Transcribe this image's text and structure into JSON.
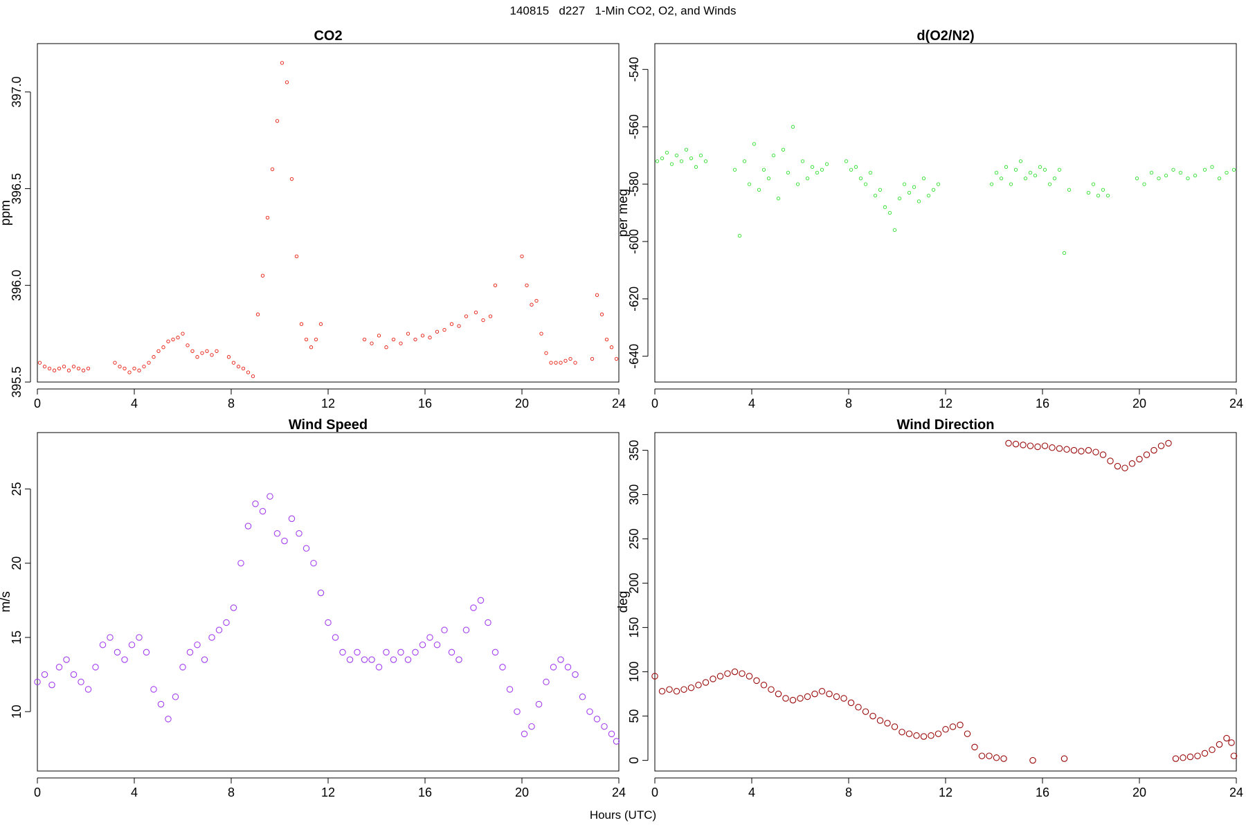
{
  "figure": {
    "suptitle": "140815   d227   1-Min CO2, O2, and Winds",
    "xlabel": "Hours (UTC)"
  },
  "chart_data": [
    {
      "id": "co2",
      "type": "scatter",
      "title": "CO2",
      "xlabel": "",
      "ylabel": "ppm",
      "xlim": [
        0,
        24
      ],
      "ylim": [
        395.5,
        397.25
      ],
      "xticks": [
        0,
        4,
        8,
        12,
        16,
        20,
        24
      ],
      "yticks": [
        395.5,
        396.0,
        396.5,
        397.0
      ],
      "ytick_labels": [
        "395.5",
        "396.0",
        "396.5",
        "397.0"
      ],
      "grid": false,
      "color": "#e8180c",
      "marker_size": "small",
      "series": [
        {
          "x": [
            0.1,
            0.3,
            0.5,
            0.7,
            0.9,
            1.1,
            1.3,
            1.5,
            1.7,
            1.9,
            2.1,
            3.2,
            3.4,
            3.6,
            3.8,
            4.0,
            4.2,
            4.4,
            4.6,
            4.8,
            5.0,
            5.2,
            5.4,
            5.6,
            5.8,
            6.0,
            6.2,
            6.4,
            6.6,
            6.8,
            7.0,
            7.2,
            7.4,
            7.9,
            8.1,
            8.3,
            8.5,
            8.7,
            8.9,
            9.1,
            9.3,
            9.5,
            9.7,
            9.9,
            10.1,
            10.3,
            10.5,
            10.7,
            10.9,
            11.1,
            11.3,
            11.5,
            11.7,
            13.5,
            13.8,
            14.1,
            14.4,
            14.7,
            15.0,
            15.3,
            15.6,
            15.9,
            16.2,
            16.5,
            16.8,
            17.1,
            17.4,
            17.7,
            18.1,
            18.4,
            18.7,
            18.9,
            20.0,
            20.2,
            20.4,
            20.6,
            20.8,
            21.0,
            21.2,
            21.4,
            21.6,
            21.8,
            22.0,
            22.2,
            22.9,
            23.1,
            23.3,
            23.5,
            23.7,
            23.9
          ],
          "y": [
            395.6,
            395.58,
            395.57,
            395.56,
            395.57,
            395.58,
            395.56,
            395.58,
            395.57,
            395.56,
            395.57,
            395.6,
            395.58,
            395.57,
            395.55,
            395.57,
            395.56,
            395.58,
            395.6,
            395.63,
            395.66,
            395.68,
            395.71,
            395.72,
            395.73,
            395.75,
            395.69,
            395.66,
            395.63,
            395.65,
            395.66,
            395.64,
            395.66,
            395.63,
            395.6,
            395.58,
            395.57,
            395.55,
            395.53,
            395.85,
            396.05,
            396.35,
            396.6,
            396.85,
            397.15,
            397.05,
            396.55,
            396.15,
            395.8,
            395.72,
            395.68,
            395.72,
            395.8,
            395.72,
            395.7,
            395.74,
            395.68,
            395.72,
            395.7,
            395.75,
            395.72,
            395.74,
            395.73,
            395.76,
            395.77,
            395.8,
            395.79,
            395.84,
            395.86,
            395.82,
            395.84,
            396.0,
            396.15,
            396.0,
            395.9,
            395.92,
            395.75,
            395.65,
            395.6,
            395.6,
            395.6,
            395.61,
            395.62,
            395.6,
            395.62,
            395.95,
            395.85,
            395.72,
            395.68,
            395.62
          ]
        }
      ]
    },
    {
      "id": "o2",
      "type": "scatter",
      "title": "d(O2/N2)",
      "xlabel": "",
      "ylabel": "per meg",
      "xlim": [
        0,
        24
      ],
      "ylim": [
        -649,
        -531
      ],
      "xticks": [
        0,
        4,
        8,
        12,
        16,
        20,
        24
      ],
      "yticks": [
        -640,
        -620,
        -600,
        -580,
        -560,
        -540
      ],
      "ytick_labels": [
        "-640",
        "-620",
        "-600",
        "-580",
        "-560",
        "-540"
      ],
      "grid": false,
      "color": "#2ee02e",
      "marker_size": "small",
      "series": [
        {
          "x": [
            0.1,
            0.3,
            0.5,
            0.7,
            0.9,
            1.1,
            1.3,
            1.5,
            1.7,
            1.9,
            2.1,
            3.3,
            3.5,
            3.7,
            3.9,
            4.1,
            4.3,
            4.5,
            4.7,
            4.9,
            5.1,
            5.3,
            5.5,
            5.7,
            5.9,
            6.1,
            6.3,
            6.5,
            6.7,
            6.9,
            7.1,
            7.9,
            8.1,
            8.3,
            8.5,
            8.7,
            8.9,
            9.1,
            9.3,
            9.5,
            9.7,
            9.9,
            10.1,
            10.3,
            10.5,
            10.7,
            10.9,
            11.1,
            11.3,
            11.5,
            11.7,
            13.9,
            14.1,
            14.3,
            14.5,
            14.7,
            14.9,
            15.1,
            15.3,
            15.5,
            15.7,
            15.9,
            16.1,
            16.3,
            16.5,
            16.7,
            16.9,
            17.1,
            17.9,
            18.1,
            18.3,
            18.5,
            18.7,
            19.9,
            20.2,
            20.5,
            20.8,
            21.1,
            21.4,
            21.7,
            22.0,
            22.3,
            22.7,
            23.0,
            23.3,
            23.6,
            23.9
          ],
          "y": [
            -572,
            -571,
            -569,
            -573,
            -570,
            -572,
            -568,
            -571,
            -574,
            -570,
            -572,
            -575,
            -598,
            -572,
            -580,
            -566,
            -582,
            -575,
            -578,
            -570,
            -585,
            -568,
            -576,
            -560,
            -580,
            -572,
            -578,
            -574,
            -576,
            -575,
            -573,
            -572,
            -575,
            -574,
            -578,
            -580,
            -576,
            -584,
            -582,
            -588,
            -590,
            -596,
            -585,
            -580,
            -583,
            -581,
            -586,
            -578,
            -584,
            -582,
            -580,
            -580,
            -576,
            -578,
            -574,
            -580,
            -575,
            -572,
            -578,
            -576,
            -577,
            -574,
            -575,
            -580,
            -578,
            -575,
            -604,
            -582,
            -583,
            -580,
            -584,
            -582,
            -584,
            -578,
            -580,
            -576,
            -578,
            -577,
            -575,
            -576,
            -578,
            -577,
            -575,
            -574,
            -578,
            -576,
            -575
          ]
        }
      ]
    },
    {
      "id": "wind_speed",
      "type": "scatter",
      "title": "Wind Speed",
      "xlabel": "",
      "ylabel": "m/s",
      "xlim": [
        0,
        24
      ],
      "ylim": [
        6.0,
        28.8
      ],
      "xticks": [
        0,
        4,
        8,
        12,
        16,
        20,
        24
      ],
      "yticks": [
        10,
        15,
        20,
        25
      ],
      "ytick_labels": [
        "10",
        "15",
        "20",
        "25"
      ],
      "grid": false,
      "color": "#a43ff0",
      "marker_size": "large",
      "series": [
        {
          "x": [
            0.0,
            0.3,
            0.6,
            0.9,
            1.2,
            1.5,
            1.8,
            2.1,
            2.4,
            2.7,
            3.0,
            3.3,
            3.6,
            3.9,
            4.2,
            4.5,
            4.8,
            5.1,
            5.4,
            5.7,
            6.0,
            6.3,
            6.6,
            6.9,
            7.2,
            7.5,
            7.8,
            8.1,
            8.4,
            8.7,
            9.0,
            9.3,
            9.6,
            9.9,
            10.2,
            10.5,
            10.8,
            11.1,
            11.4,
            11.7,
            12.0,
            12.3,
            12.6,
            12.9,
            13.2,
            13.5,
            13.8,
            14.1,
            14.4,
            14.7,
            15.0,
            15.3,
            15.6,
            15.9,
            16.2,
            16.5,
            16.8,
            17.1,
            17.4,
            17.7,
            18.0,
            18.3,
            18.6,
            18.9,
            19.2,
            19.5,
            19.8,
            20.1,
            20.4,
            20.7,
            21.0,
            21.3,
            21.6,
            21.9,
            22.2,
            22.5,
            22.8,
            23.1,
            23.4,
            23.7,
            23.9
          ],
          "y": [
            12.0,
            12.5,
            11.8,
            13.0,
            13.5,
            12.5,
            12.0,
            11.5,
            13.0,
            14.5,
            15.0,
            14.0,
            13.5,
            14.5,
            15.0,
            14.0,
            11.5,
            10.5,
            9.5,
            11.0,
            13.0,
            14.0,
            14.5,
            13.5,
            15.0,
            15.5,
            16.0,
            17.0,
            20.0,
            22.5,
            24.0,
            23.5,
            24.5,
            22.0,
            21.5,
            23.0,
            22.0,
            21.0,
            20.0,
            18.0,
            16.0,
            15.0,
            14.0,
            13.5,
            14.0,
            13.5,
            13.5,
            13.0,
            14.0,
            13.5,
            14.0,
            13.5,
            14.0,
            14.5,
            15.0,
            14.5,
            15.5,
            14.0,
            13.5,
            15.5,
            17.0,
            17.5,
            16.0,
            14.0,
            13.0,
            11.5,
            10.0,
            8.5,
            9.0,
            10.5,
            12.0,
            13.0,
            13.5,
            13.0,
            12.5,
            11.0,
            10.0,
            9.5,
            9.0,
            8.5,
            8.0
          ]
        }
      ]
    },
    {
      "id": "wind_direction",
      "type": "scatter",
      "title": "Wind Direction",
      "xlabel": "",
      "ylabel": "deg",
      "xlim": [
        0,
        24
      ],
      "ylim": [
        -12,
        370
      ],
      "xticks": [
        0,
        4,
        8,
        12,
        16,
        20,
        24
      ],
      "yticks": [
        0,
        50,
        100,
        150,
        200,
        250,
        300,
        350
      ],
      "ytick_labels": [
        "0",
        "50",
        "100",
        "150",
        "200",
        "250",
        "300",
        "350"
      ],
      "grid": false,
      "color": "#9b0a0a",
      "marker_size": "large",
      "series": [
        {
          "x": [
            0.0,
            0.3,
            0.6,
            0.9,
            1.2,
            1.5,
            1.8,
            2.1,
            2.4,
            2.7,
            3.0,
            3.3,
            3.6,
            3.9,
            4.2,
            4.5,
            4.8,
            5.1,
            5.4,
            5.7,
            6.0,
            6.3,
            6.6,
            6.9,
            7.2,
            7.5,
            7.8,
            8.1,
            8.4,
            8.7,
            9.0,
            9.3,
            9.6,
            9.9,
            10.2,
            10.5,
            10.8,
            11.1,
            11.4,
            11.7,
            12.0,
            12.3,
            12.6,
            12.9,
            13.2,
            13.5,
            13.8,
            14.1,
            14.4,
            14.6,
            14.9,
            15.2,
            15.5,
            15.8,
            16.1,
            16.4,
            16.7,
            17.0,
            17.3,
            17.6,
            17.9,
            18.2,
            18.5,
            18.8,
            19.1,
            19.4,
            19.7,
            20.0,
            20.3,
            20.6,
            20.9,
            21.2,
            21.5,
            21.8,
            22.1,
            22.4,
            22.7,
            23.0,
            23.3,
            23.6,
            23.8,
            23.9,
            15.6,
            16.9
          ],
          "y": [
            95,
            78,
            80,
            78,
            80,
            82,
            85,
            88,
            92,
            95,
            98,
            100,
            98,
            95,
            90,
            85,
            80,
            75,
            70,
            68,
            70,
            72,
            75,
            78,
            75,
            72,
            70,
            65,
            60,
            55,
            50,
            45,
            42,
            38,
            32,
            30,
            28,
            27,
            28,
            30,
            35,
            38,
            40,
            30,
            15,
            5,
            5,
            3,
            2,
            358,
            357,
            356,
            355,
            354,
            355,
            353,
            352,
            351,
            350,
            349,
            350,
            348,
            345,
            338,
            332,
            330,
            335,
            340,
            345,
            350,
            355,
            358,
            2,
            3,
            4,
            5,
            8,
            12,
            18,
            25,
            20,
            5,
            0,
            2
          ]
        }
      ]
    }
  ]
}
